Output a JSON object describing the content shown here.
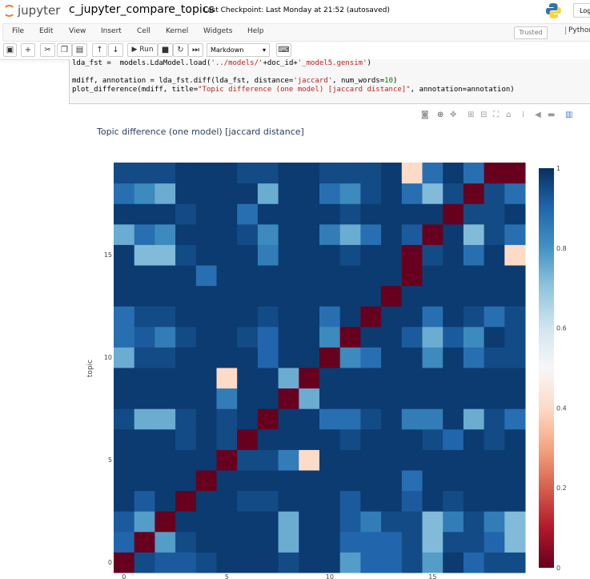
{
  "header": {
    "logo_text": "jupyter",
    "notebook_name": "c_jupyter_compare_topics",
    "checkpoint": "Last Checkpoint: Last Monday at 21:52  (autosaved)",
    "logout_label": "Log"
  },
  "menubar": {
    "items": [
      "File",
      "Edit",
      "View",
      "Insert",
      "Cell",
      "Kernel",
      "Widgets",
      "Help"
    ],
    "trusted_label": "Trusted",
    "kernel_name": "Python"
  },
  "toolbar": {
    "run_label": "Run",
    "cell_type": "Markdown"
  },
  "code": {
    "line1_a": "lda_fst = ",
    "line1_b": " models.LdaModel.load(",
    "line1_c": "'../models/'",
    "line1_d": "+doc_id+",
    "line1_e": "'_model5.gensim'",
    "line1_f": ")",
    "line2_a": "mdiff, annotation = lda_fst.diff(lda_fst, distance=",
    "line2_b": "'jaccard'",
    "line2_c": ", num_words=",
    "line2_d": "10",
    "line2_e": ")",
    "line3_a": "plot_difference(mdiff, title=",
    "line3_b": "\"Topic difference (one model) [jaccard distance]\"",
    "line3_c": ", annotation=annotation)"
  },
  "plot_toolbar_icons": [
    "camera-icon",
    "zoom-icon",
    "pan-icon",
    "zoom-in-icon",
    "zoom-out-icon",
    "autoscale-icon",
    "home-icon",
    "spike-icon",
    "hover-closest-icon",
    "hover-compare-icon",
    "plotly-logo-icon"
  ],
  "chart_data": {
    "type": "heatmap",
    "title": "Topic difference (one model) [jaccard distance]",
    "xlabel": "",
    "ylabel": "topic",
    "x_ticks": [
      "0",
      "5",
      "10",
      "15"
    ],
    "y_ticks": [
      "0",
      "5",
      "10",
      "15"
    ],
    "colorbar_ticks": [
      "0",
      "0.2",
      "0.4",
      "0.6",
      "0.8",
      "1"
    ],
    "zmin": 0,
    "zmax": 1,
    "colorscale": [
      "#67001f",
      "#b2182b",
      "#d6604d",
      "#f4a582",
      "#fddbc7",
      "#f7f7f7",
      "#d1e5f0",
      "#92c5de",
      "#4393c3",
      "#2166ac",
      "#053061"
    ],
    "rows": 20,
    "cols": 20,
    "z": [
      [
        0.0,
        0.95,
        0.92,
        0.92,
        0.95,
        0.98,
        0.98,
        0.98,
        0.95,
        0.98,
        0.98,
        0.78,
        0.9,
        0.9,
        0.95,
        0.78,
        0.98,
        0.9,
        0.95,
        0.95
      ],
      [
        0.9,
        0.0,
        0.78,
        0.95,
        0.98,
        0.98,
        0.98,
        0.98,
        0.75,
        0.98,
        0.98,
        0.9,
        0.9,
        0.9,
        0.95,
        0.72,
        0.95,
        0.95,
        0.9,
        0.72
      ],
      [
        0.92,
        0.78,
        0.0,
        0.98,
        0.98,
        0.98,
        0.98,
        0.98,
        0.75,
        0.98,
        0.98,
        0.92,
        0.85,
        0.95,
        0.95,
        0.72,
        0.85,
        0.95,
        0.85,
        0.72
      ],
      [
        0.98,
        0.92,
        0.98,
        0.0,
        0.98,
        0.98,
        0.95,
        0.95,
        0.98,
        0.98,
        0.98,
        0.92,
        0.98,
        0.98,
        0.92,
        0.98,
        0.95,
        0.98,
        0.98,
        0.98
      ],
      [
        0.98,
        0.98,
        0.98,
        0.98,
        0.0,
        0.98,
        0.98,
        0.98,
        0.98,
        0.98,
        0.98,
        0.98,
        0.98,
        0.98,
        0.88,
        0.98,
        0.98,
        0.98,
        0.98,
        0.98
      ],
      [
        0.98,
        0.98,
        0.98,
        0.98,
        0.98,
        0.0,
        0.95,
        0.95,
        0.85,
        0.4,
        0.98,
        0.98,
        0.98,
        0.98,
        0.98,
        0.98,
        0.98,
        0.98,
        0.98,
        0.98
      ],
      [
        0.98,
        0.98,
        0.98,
        0.95,
        0.98,
        0.95,
        0.0,
        0.98,
        0.98,
        0.98,
        0.98,
        0.95,
        0.98,
        0.98,
        0.98,
        0.95,
        0.9,
        0.98,
        0.95,
        0.98
      ],
      [
        0.95,
        0.75,
        0.75,
        0.95,
        0.98,
        0.95,
        0.98,
        0.0,
        0.98,
        0.98,
        0.88,
        0.88,
        0.95,
        0.98,
        0.85,
        0.85,
        0.98,
        0.75,
        0.95,
        0.88
      ],
      [
        0.98,
        0.98,
        0.98,
        0.98,
        0.98,
        0.85,
        0.98,
        0.98,
        0.0,
        0.75,
        0.98,
        0.98,
        0.98,
        0.98,
        0.98,
        0.98,
        0.98,
        0.98,
        0.98,
        0.98
      ],
      [
        0.98,
        0.98,
        0.98,
        0.98,
        0.98,
        0.4,
        0.98,
        0.98,
        0.75,
        0.0,
        0.98,
        0.98,
        0.98,
        0.98,
        0.98,
        0.98,
        0.98,
        0.98,
        0.98,
        0.98
      ],
      [
        0.75,
        0.95,
        0.95,
        0.98,
        0.98,
        0.98,
        0.98,
        0.9,
        0.98,
        0.98,
        0.0,
        0.82,
        0.88,
        0.98,
        0.98,
        0.82,
        0.98,
        0.88,
        0.95,
        0.95
      ],
      [
        0.88,
        0.92,
        0.85,
        0.95,
        0.98,
        0.98,
        0.95,
        0.9,
        0.98,
        0.98,
        0.82,
        0.0,
        0.98,
        0.98,
        0.92,
        0.75,
        0.92,
        0.82,
        0.98,
        0.95
      ],
      [
        0.88,
        0.95,
        0.95,
        0.98,
        0.98,
        0.98,
        0.98,
        0.95,
        0.98,
        0.98,
        0.88,
        0.98,
        0.0,
        0.98,
        0.98,
        0.88,
        0.98,
        0.95,
        0.88,
        0.95
      ],
      [
        0.98,
        0.98,
        0.98,
        0.98,
        0.98,
        0.98,
        0.98,
        0.98,
        0.98,
        0.98,
        0.98,
        0.98,
        0.98,
        0.0,
        0.98,
        0.98,
        0.98,
        0.98,
        0.98,
        0.98
      ],
      [
        0.98,
        0.98,
        0.98,
        0.98,
        0.88,
        0.98,
        0.98,
        0.98,
        0.98,
        0.98,
        0.98,
        0.98,
        0.98,
        0.98,
        0.0,
        0.98,
        0.98,
        0.98,
        0.98,
        0.98
      ],
      [
        0.98,
        0.72,
        0.72,
        0.95,
        0.98,
        0.98,
        0.98,
        0.85,
        0.98,
        0.98,
        0.98,
        0.95,
        0.98,
        0.98,
        0.0,
        0.95,
        0.98,
        0.88,
        0.98,
        0.4
      ],
      [
        0.75,
        0.88,
        0.82,
        0.98,
        0.98,
        0.98,
        0.95,
        0.82,
        0.98,
        0.98,
        0.85,
        0.75,
        0.88,
        0.98,
        0.92,
        0.0,
        0.98,
        0.72,
        0.95,
        0.88
      ],
      [
        0.98,
        0.98,
        0.98,
        0.95,
        0.98,
        0.98,
        0.88,
        0.98,
        0.98,
        0.98,
        0.98,
        0.95,
        0.98,
        0.98,
        0.98,
        0.98,
        0.0,
        0.95,
        0.95,
        0.98
      ],
      [
        0.88,
        0.82,
        0.75,
        0.98,
        0.98,
        0.98,
        0.98,
        0.75,
        0.98,
        0.98,
        0.88,
        0.82,
        0.95,
        0.98,
        0.88,
        0.72,
        0.95,
        0.0,
        0.95,
        0.88
      ],
      [
        0.95,
        0.95,
        0.95,
        0.98,
        0.98,
        0.98,
        0.95,
        0.95,
        0.98,
        0.98,
        0.95,
        0.95,
        0.95,
        0.98,
        0.4,
        0.88,
        0.98,
        0.88,
        0.0,
        0.0
      ]
    ]
  }
}
